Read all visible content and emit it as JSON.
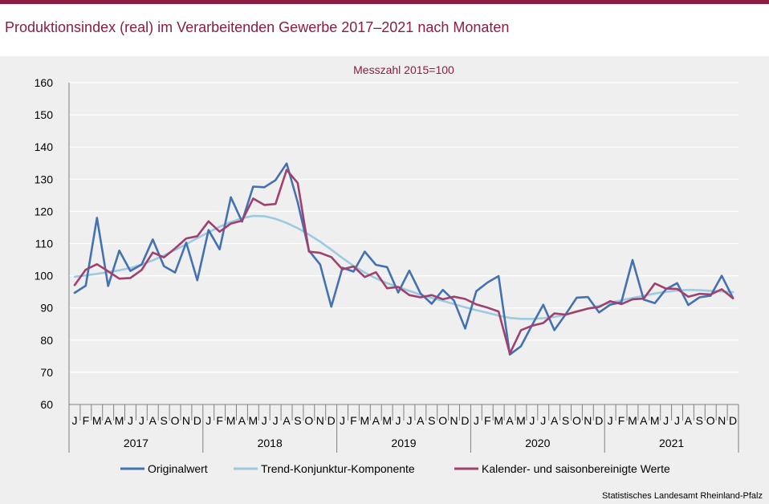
{
  "header": {
    "title": "Produktionsindex (real) im Verarbeitenden Gewerbe 2017–2021 nach Monaten"
  },
  "footer": {
    "source": "Statistisches Landesamt Rheinland-Pfalz"
  },
  "colors": {
    "accent": "#8c1d40",
    "original": "#4472b0",
    "trend": "#9ecae1",
    "seasonal": "#a0406e"
  },
  "chart_data": {
    "type": "line",
    "subtitle": "Messzahl 2015=100",
    "ylim": [
      60,
      160
    ],
    "yticks": [
      60,
      70,
      80,
      90,
      100,
      110,
      120,
      130,
      140,
      150,
      160
    ],
    "grid": true,
    "legend_position": "bottom",
    "month_labels": [
      "J",
      "F",
      "M",
      "A",
      "M",
      "J",
      "J",
      "A",
      "S",
      "O",
      "N",
      "D"
    ],
    "years": [
      "2017",
      "2018",
      "2019",
      "2020",
      "2021"
    ],
    "series": [
      {
        "name": "Originalwert",
        "values": [
          94.7,
          96.9,
          118.0,
          96.8,
          107.8,
          101.5,
          103.5,
          111.3,
          103.0,
          101.0,
          110.3,
          98.6,
          114.2,
          108.2,
          124.4,
          116.8,
          127.7,
          127.5,
          129.7,
          134.9,
          122.8,
          107.8,
          103.5,
          90.4,
          102.5,
          101.3,
          107.5,
          103.4,
          102.7,
          94.8,
          101.6,
          94.5,
          91.3,
          95.6,
          92.3,
          83.6,
          95.2,
          97.9,
          99.9,
          75.5,
          78.1,
          84.7,
          91.0,
          83.1,
          88.0,
          93.2,
          93.4,
          88.6,
          91.0,
          91.8,
          104.9,
          92.6,
          91.5,
          95.8,
          97.7,
          90.9,
          93.3,
          93.8,
          100.0,
          93.1
        ]
      },
      {
        "name": "Trend-Konjunktur-Komponente",
        "values": [
          99.7,
          100.1,
          100.6,
          101.1,
          101.7,
          102.4,
          103.5,
          104.8,
          106.3,
          108.0,
          109.8,
          111.7,
          113.5,
          115.2,
          116.7,
          117.9,
          118.6,
          118.5,
          117.7,
          116.4,
          114.8,
          112.8,
          110.6,
          108.1,
          105.5,
          103.1,
          101.0,
          99.2,
          97.7,
          96.5,
          95.3,
          94.1,
          93.1,
          92.2,
          91.2,
          90.2,
          89.3,
          88.5,
          87.6,
          86.9,
          86.6,
          86.6,
          86.8,
          87.2,
          87.9,
          88.8,
          89.8,
          90.7,
          91.6,
          92.4,
          93.1,
          93.8,
          94.5,
          95.0,
          95.4,
          95.6,
          95.5,
          95.3,
          95.1,
          94.9
        ]
      },
      {
        "name": "Kalender- und saisonbereinigte Werte",
        "values": [
          97.1,
          101.9,
          103.6,
          101.4,
          99.1,
          99.3,
          101.8,
          107.2,
          105.7,
          108.5,
          111.6,
          112.3,
          116.9,
          113.7,
          116.2,
          117.1,
          124.0,
          122.0,
          122.3,
          132.9,
          128.8,
          107.5,
          107.1,
          105.8,
          102.0,
          102.9,
          99.6,
          101.1,
          96.1,
          96.5,
          94.0,
          93.3,
          94.0,
          92.7,
          93.5,
          92.8,
          91.1,
          90.1,
          88.9,
          75.8,
          83.1,
          84.5,
          85.3,
          88.3,
          87.9,
          88.9,
          89.8,
          90.3,
          92.1,
          91.2,
          92.7,
          92.9,
          97.6,
          96.0,
          95.9,
          93.5,
          94.4,
          94.2,
          95.8,
          93.0
        ]
      }
    ]
  }
}
